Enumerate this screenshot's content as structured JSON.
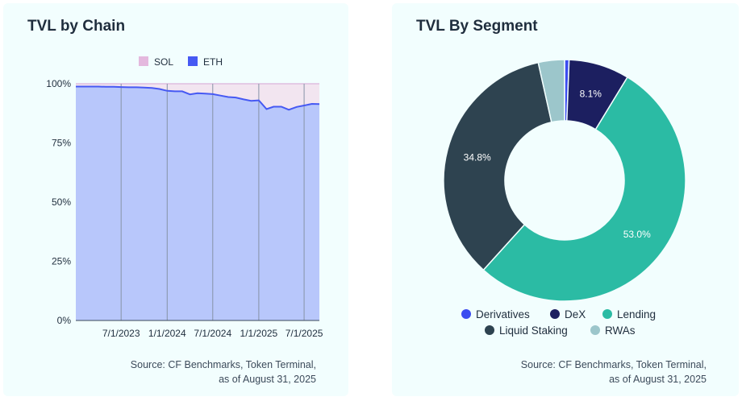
{
  "left": {
    "title": "TVL by Chain",
    "source_line1": "Source: CF Benchmarks, Token Terminal,",
    "source_line2": "as of August 31, 2025"
  },
  "right": {
    "title": "TVL By Segment",
    "source_line1": "Source: CF Benchmarks, Token Terminal,",
    "source_line2": "as of August 31, 2025"
  },
  "chart_data": [
    {
      "type": "area",
      "stacked": true,
      "normalized": true,
      "title": "TVL by Chain",
      "legend": "top",
      "y_ticks": [
        "0%",
        "25%",
        "50%",
        "75%",
        "100%"
      ],
      "ylim": [
        0,
        100
      ],
      "x_ticks": [
        "7/1/2023",
        "1/1/2024",
        "7/1/2024",
        "1/1/2025",
        "7/1/2025"
      ],
      "x": [
        "2023-01-01",
        "2023-02-01",
        "2023-03-01",
        "2023-04-01",
        "2023-05-01",
        "2023-06-01",
        "2023-07-01",
        "2023-08-01",
        "2023-09-01",
        "2023-10-01",
        "2023-11-01",
        "2023-12-01",
        "2024-01-01",
        "2024-02-01",
        "2024-03-01",
        "2024-04-01",
        "2024-05-01",
        "2024-06-01",
        "2024-07-01",
        "2024-08-01",
        "2024-09-01",
        "2024-10-01",
        "2024-11-01",
        "2024-12-01",
        "2025-01-01",
        "2025-02-01",
        "2025-03-01",
        "2025-04-01",
        "2025-05-01",
        "2025-06-01",
        "2025-07-01",
        "2025-08-01",
        "2025-08-31"
      ],
      "series": [
        {
          "name": "SOL",
          "color": "#e4b8de",
          "values": [
            1.2,
            1.2,
            1.2,
            1.2,
            1.3,
            1.3,
            1.4,
            1.5,
            1.5,
            1.6,
            1.8,
            2.2,
            3.0,
            3.2,
            3.2,
            4.5,
            4.0,
            4.2,
            4.4,
            5.0,
            5.6,
            5.8,
            6.6,
            7.2,
            7.0,
            10.7,
            9.7,
            9.7,
            11.0,
            9.8,
            9.2,
            8.5,
            8.6
          ]
        },
        {
          "name": "ETH",
          "color": "#4659f3",
          "values": [
            98.8,
            98.8,
            98.8,
            98.8,
            98.7,
            98.7,
            98.6,
            98.5,
            98.5,
            98.4,
            98.2,
            97.8,
            97.0,
            96.8,
            96.8,
            95.5,
            96.0,
            95.8,
            95.6,
            95.0,
            94.4,
            94.2,
            93.4,
            92.8,
            93.0,
            89.3,
            90.3,
            90.3,
            89.0,
            90.2,
            90.8,
            91.5,
            91.4
          ]
        }
      ]
    },
    {
      "type": "pie",
      "donut": true,
      "title": "TVL By Segment",
      "legend": "bottom",
      "categories": [
        "Derivatives",
        "DeX",
        "Lending",
        "Liquid Staking",
        "RWAs"
      ],
      "values": [
        0.6,
        8.1,
        53.0,
        34.8,
        3.5
      ],
      "colors": [
        "#3c4cf0",
        "#1c1f60",
        "#2bbba4",
        "#2e4350",
        "#9cc6cb"
      ],
      "labels_shown": [
        "",
        "8.1%",
        "53.0%",
        "34.8%",
        ""
      ]
    }
  ]
}
